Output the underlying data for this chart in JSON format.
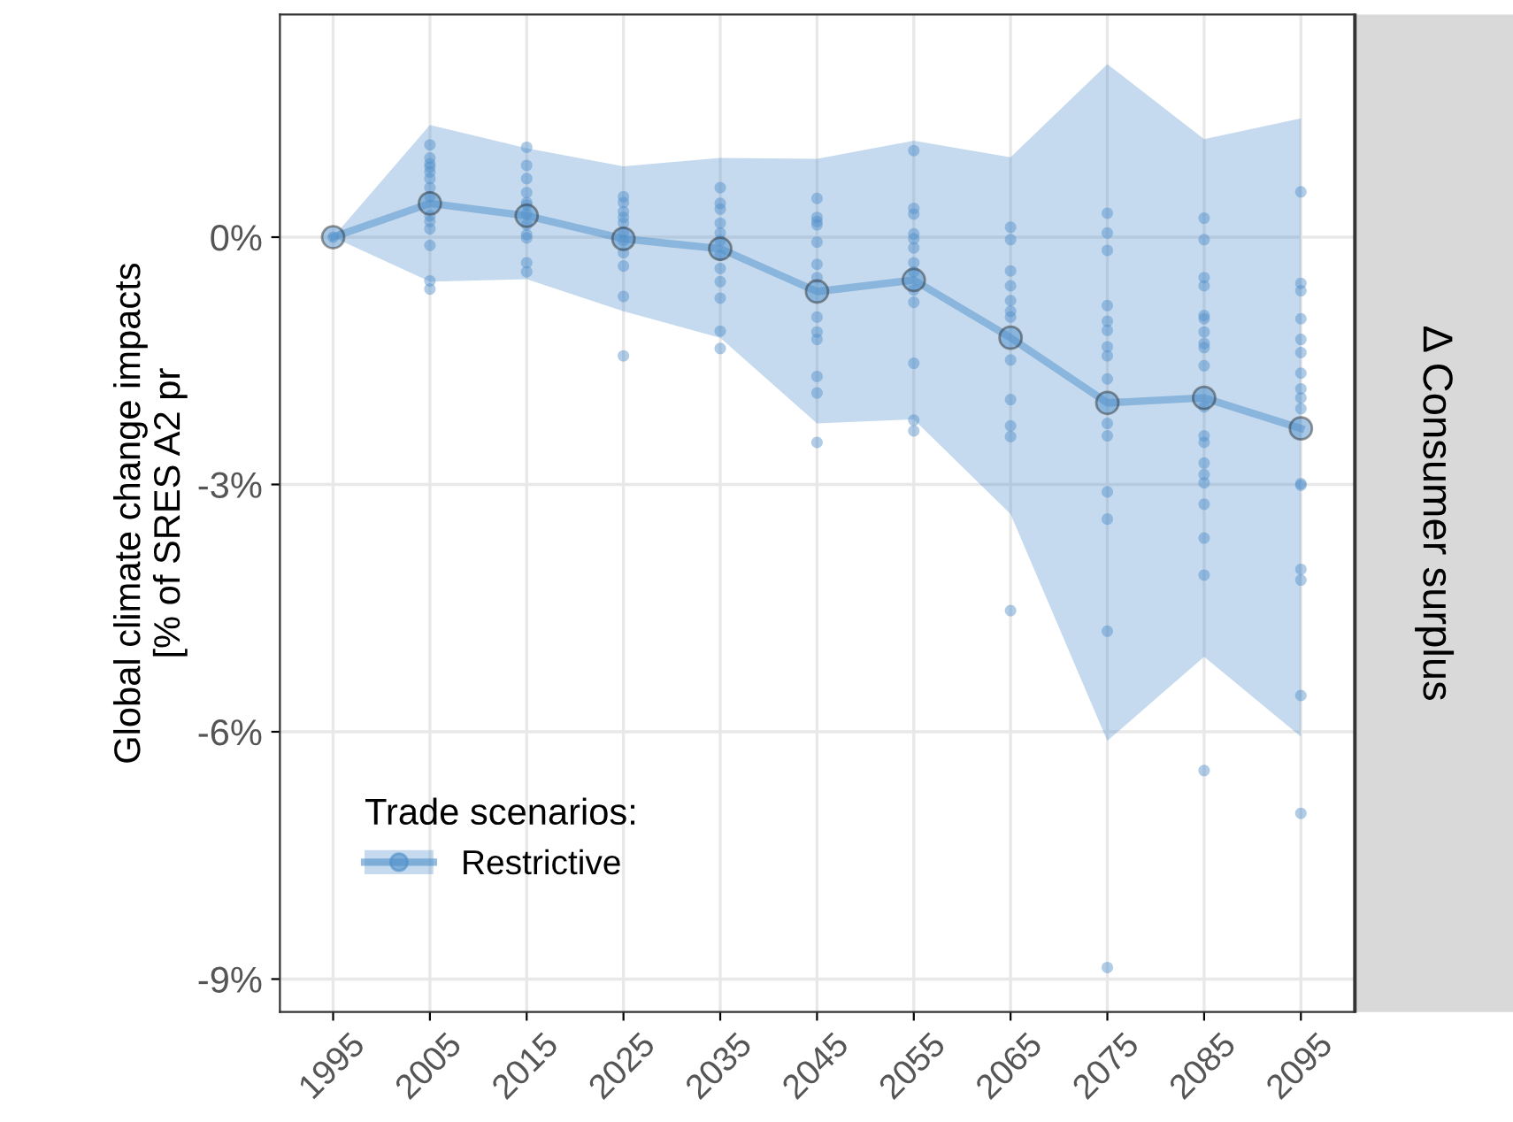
{
  "chart_data": {
    "type": "line",
    "ylabel": "Global climate change impacts\n[% of SRES A2 pr",
    "legend_title": "Trade scenarios:",
    "annotations": [
      "Δ Consumer surplus"
    ],
    "x": [
      1995,
      2005,
      2015,
      2025,
      2035,
      2045,
      2055,
      2065,
      2075,
      2085,
      2095
    ],
    "series": [
      {
        "type": "scatter",
        "color": "#4f8fca",
        "x": [
          1995,
          2005,
          2005,
          2005,
          2005,
          2005,
          2005,
          2005,
          2005,
          2005,
          2005,
          2005,
          2005,
          2005,
          2005,
          2015,
          2015,
          2015,
          2015,
          2015,
          2015,
          2015,
          2015,
          2015,
          2015,
          2015,
          2015,
          2025,
          2025,
          2025,
          2025,
          2025,
          2025,
          2025,
          2025,
          2025,
          2025,
          2025,
          2035,
          2035,
          2035,
          2035,
          2035,
          2035,
          2035,
          2035,
          2035,
          2035,
          2035,
          2035,
          2045,
          2045,
          2045,
          2045,
          2045,
          2045,
          2045,
          2045,
          2045,
          2045,
          2045,
          2045,
          2045,
          2055,
          2055,
          2055,
          2055,
          2055,
          2055,
          2055,
          2055,
          2055,
          2055,
          2055,
          2055,
          2055,
          2065,
          2065,
          2065,
          2065,
          2065,
          2065,
          2065,
          2065,
          2065,
          2065,
          2065,
          2065,
          2075,
          2075,
          2075,
          2075,
          2075,
          2075,
          2075,
          2075,
          2075,
          2075,
          2075,
          2075,
          2075,
          2075,
          2075,
          2085,
          2085,
          2085,
          2085,
          2085,
          2085,
          2085,
          2085,
          2085,
          2085,
          2085,
          2085,
          2085,
          2085,
          2085,
          2085,
          2085,
          2085,
          2085,
          2085,
          2095,
          2095,
          2095,
          2095,
          2095,
          2095,
          2095,
          2095,
          2095,
          2095,
          2095,
          2095,
          2095,
          2095,
          2095,
          2095
        ],
        "values": [
          0,
          1.12,
          0.96,
          0.89,
          0.85,
          0.79,
          0.71,
          0.6,
          0.49,
          0.26,
          0.19,
          0.1,
          -0.1,
          -0.53,
          -0.63,
          1.09,
          0.87,
          0.71,
          0.54,
          0.42,
          0.39,
          0.28,
          0.15,
          0.03,
          -0.01,
          -0.31,
          -0.42,
          0.49,
          0.42,
          0.31,
          0.24,
          0.17,
          0.06,
          -0.04,
          -0.19,
          -0.35,
          -0.72,
          -1.44,
          0.6,
          0.41,
          0.34,
          0.17,
          0.05,
          -0.04,
          -0.22,
          -0.38,
          -0.54,
          -0.74,
          -1.14,
          -1.35,
          0.47,
          0.24,
          0.19,
          0.15,
          -0.06,
          -0.33,
          -0.49,
          -0.97,
          -1.15,
          -1.24,
          -1.69,
          -1.89,
          -2.49,
          1.05,
          0.35,
          0.28,
          0.04,
          -0.02,
          -0.13,
          -0.31,
          -0.42,
          -0.64,
          -0.79,
          -1.53,
          -2.22,
          -2.35,
          0.12,
          -0.03,
          -0.41,
          -0.59,
          -0.77,
          -0.9,
          -0.97,
          -1.49,
          -1.97,
          -2.29,
          -2.42,
          -4.53,
          0.29,
          0.05,
          -0.16,
          -0.83,
          -1.02,
          -1.13,
          -1.33,
          -1.44,
          -1.72,
          -2.26,
          -2.41,
          -3.09,
          -3.42,
          -4.78,
          -8.86,
          0.23,
          -0.03,
          -0.49,
          -0.59,
          -0.95,
          -0.99,
          -1.15,
          -1.29,
          -1.34,
          -1.56,
          -2.06,
          -2.41,
          -2.49,
          -2.74,
          -2.88,
          -2.98,
          -3.24,
          -3.65,
          -4.1,
          -6.47,
          0.55,
          -0.56,
          -0.65,
          -0.99,
          -1.24,
          -1.4,
          -1.65,
          -1.84,
          -1.95,
          -2.08,
          -2.99,
          -3.01,
          -4.03,
          -4.16,
          -5.56,
          -6.99
        ]
      },
      {
        "name": "Restrictive",
        "color": "#4f8fca",
        "marker": "circle",
        "values": [
          0,
          0.41,
          0.26,
          -0.02,
          -0.14,
          -0.66,
          -0.52,
          -1.22,
          -2.01,
          -1.95,
          -2.32
        ],
        "lower": [
          0,
          -0.54,
          -0.51,
          -0.9,
          -1.22,
          -2.26,
          -2.21,
          -3.36,
          -6.11,
          -5.09,
          -6.06
        ],
        "upper": [
          0,
          1.36,
          1.08,
          0.86,
          0.96,
          0.95,
          1.17,
          0.97,
          2.1,
          1.19,
          1.44
        ]
      }
    ],
    "xlim": [
      1989.5,
      2100.5
    ],
    "xticks": [
      1995,
      2005,
      2015,
      2025,
      2035,
      2045,
      2055,
      2065,
      2075,
      2085,
      2095
    ],
    "ylim": [
      -9.4,
      2.7
    ],
    "yticks": [
      {
        "value": 0,
        "label": "0%"
      },
      {
        "value": -3,
        "label": "-3%"
      },
      {
        "value": -6,
        "label": "-6%"
      },
      {
        "value": -9,
        "label": "-9%"
      }
    ],
    "grid": true,
    "legend": "bottom left"
  }
}
